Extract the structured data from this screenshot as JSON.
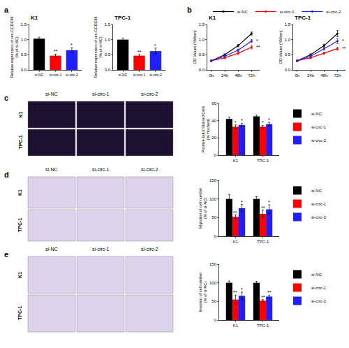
{
  "panel_labels": [
    "a",
    "b",
    "c",
    "d",
    "e"
  ],
  "image_grids": [
    {
      "columns": [
        "si-NC",
        "si-circ-1",
        "si-circ-2"
      ],
      "rows": [
        "K1",
        "TPC-1"
      ]
    },
    {
      "columns": [
        "si-NC",
        "si-circ-1",
        "si-circ-2"
      ],
      "rows": [
        "K1",
        "TPC-1"
      ]
    },
    {
      "columns": [
        "si-NC",
        "si-circ-1",
        "si-circ-2"
      ],
      "rows": [
        "K1",
        "TPC-1"
      ]
    }
  ],
  "chart_data": [
    {
      "type": "bar",
      "title": "K1",
      "ylabel": "Relative expression of circ-CCDC66\n(% of si-NC)",
      "categories": [
        "si-NC",
        "si-circ-1",
        "si-circ-2"
      ],
      "values": [
        1.03,
        0.47,
        0.65
      ],
      "errors": [
        0.05,
        0.05,
        0.08
      ],
      "colors": [
        "#000000",
        "#ff0000",
        "#1f1fff"
      ],
      "ylim": [
        0,
        1.5
      ],
      "yticks": [
        {
          "value": 0,
          "label": "0.0"
        },
        {
          "value": 0.5,
          "label": "0.5"
        },
        {
          "value": 1,
          "label": "1.0"
        },
        {
          "value": 1.5,
          "label": "1.5"
        }
      ],
      "annotations": [
        {
          "category": "si-circ-1",
          "text": "**"
        },
        {
          "category": "si-circ-2",
          "text": "*"
        }
      ]
    },
    {
      "type": "bar",
      "title": "TPC-1",
      "ylabel": "Relative expression of circ-CCDC66\n(% of si-NC)",
      "categories": [
        "si-NC",
        "si-circ-1",
        "si-circ-2"
      ],
      "values": [
        1.0,
        0.47,
        0.62
      ],
      "errors": [
        0.04,
        0.04,
        0.1
      ],
      "colors": [
        "#000000",
        "#ff0000",
        "#1f1fff"
      ],
      "ylim": [
        0,
        1.5
      ],
      "yticks": [
        {
          "value": 0,
          "label": "0.0"
        },
        {
          "value": 0.5,
          "label": "0.5"
        },
        {
          "value": 1,
          "label": "1.0"
        },
        {
          "value": 1.5,
          "label": "1.5"
        }
      ],
      "annotations": [
        {
          "category": "si-circ-1",
          "text": "**"
        },
        {
          "category": "si-circ-2",
          "text": "*"
        }
      ]
    },
    {
      "type": "line",
      "title": "K1",
      "ylabel": "OD Values (450nm)",
      "legend": "top",
      "categories": [
        "0h",
        "24h",
        "48h",
        "72h"
      ],
      "series": [
        {
          "name": "si-NC",
          "color": "#000000",
          "marker": "circle",
          "values": [
            0.3,
            0.5,
            0.8,
            1.2
          ],
          "errors": [
            0.02,
            0.03,
            0.04,
            0.05
          ]
        },
        {
          "name": "si-circ-1",
          "color": "#ff0000",
          "marker": "circle",
          "values": [
            0.3,
            0.4,
            0.55,
            0.75
          ],
          "errors": [
            0.02,
            0.03,
            0.04,
            0.06
          ]
        },
        {
          "name": "si-circ-2",
          "color": "#1f1fff",
          "marker": "circle",
          "values": [
            0.3,
            0.45,
            0.65,
            0.95
          ],
          "errors": [
            0.02,
            0.03,
            0.04,
            0.05
          ]
        }
      ],
      "ylim": [
        0,
        1.5
      ],
      "yticks": [
        {
          "value": 0,
          "label": "0.0"
        },
        {
          "value": 0.5,
          "label": "0.5"
        },
        {
          "value": 1,
          "label": "1.0"
        },
        {
          "value": 1.5,
          "label": "1.5"
        }
      ],
      "annotations": [
        {
          "category": "72h",
          "series": "si-circ-2",
          "text": "*"
        },
        {
          "category": "72h",
          "series": "si-circ-1",
          "text": "**"
        }
      ]
    },
    {
      "type": "line",
      "title": "TPC-1",
      "ylabel": "OD Values (450nm)",
      "legend": "top",
      "categories": [
        "0h",
        "24h",
        "48h",
        "72h"
      ],
      "series": [
        {
          "name": "si-NC",
          "color": "#000000",
          "marker": "circle",
          "values": [
            0.3,
            0.5,
            0.8,
            1.2
          ],
          "errors": [
            0.02,
            0.03,
            0.05,
            0.1
          ]
        },
        {
          "name": "si-circ-1",
          "color": "#ff0000",
          "marker": "circle",
          "values": [
            0.3,
            0.4,
            0.55,
            0.7
          ],
          "errors": [
            0.02,
            0.03,
            0.04,
            0.05
          ]
        },
        {
          "name": "si-circ-2",
          "color": "#1f1fff",
          "marker": "circle",
          "values": [
            0.3,
            0.45,
            0.7,
            0.95
          ],
          "errors": [
            0.02,
            0.03,
            0.05,
            0.08
          ]
        }
      ],
      "ylim": [
        0,
        1.5
      ],
      "yticks": [
        {
          "value": 0,
          "label": "0.0"
        },
        {
          "value": 0.5,
          "label": "0.5"
        },
        {
          "value": 1,
          "label": "1.0"
        },
        {
          "value": 1.5,
          "label": "1.5"
        }
      ],
      "annotations": [
        {
          "category": "72h",
          "series": "si-circ-2",
          "text": "*"
        },
        {
          "category": "72h",
          "series": "si-circ-1",
          "text": "**"
        }
      ]
    },
    {
      "type": "bar",
      "ylabel": "Positive EdU/ Stained Cells\n(% Hochest)",
      "legend": "right",
      "categories": [
        "K1",
        "TPC-1"
      ],
      "series": [
        {
          "name": "si-NC",
          "color": "#000000",
          "values": [
            42,
            45
          ],
          "errors": [
            2,
            1.5
          ]
        },
        {
          "name": "si-circ-1",
          "color": "#ff0000",
          "values": [
            33,
            33
          ],
          "errors": [
            2,
            1.5
          ]
        },
        {
          "name": "si-circ-2",
          "color": "#1f1fff",
          "values": [
            35,
            36
          ],
          "errors": [
            2,
            2
          ]
        }
      ],
      "ylim": [
        0,
        60
      ],
      "yticks": [
        0,
        20,
        40,
        60
      ],
      "annotations": [
        {
          "category": "K1",
          "series": "si-circ-1",
          "text": "*"
        },
        {
          "category": "K1",
          "series": "si-circ-2",
          "text": "*"
        },
        {
          "category": "TPC-1",
          "series": "si-circ-1",
          "text": "*"
        },
        {
          "category": "TPC-1",
          "series": "si-circ-2",
          "text": "*"
        }
      ]
    },
    {
      "type": "bar",
      "ylabel": "Migration of cell number\n(% of si-NC)",
      "legend": "right",
      "categories": [
        "K1",
        "TPC-1"
      ],
      "series": [
        {
          "name": "si-NC",
          "color": "#000000",
          "values": [
            100,
            100
          ],
          "errors": [
            12,
            6
          ]
        },
        {
          "name": "si-circ-1",
          "color": "#ff0000",
          "values": [
            52,
            60
          ],
          "errors": [
            5,
            10
          ]
        },
        {
          "name": "si-circ-2",
          "color": "#1f1fff",
          "values": [
            75,
            72
          ],
          "errors": [
            10,
            12
          ]
        }
      ],
      "ylim": [
        0,
        150
      ],
      "yticks": [
        0,
        50,
        100,
        150
      ],
      "annotations": [
        {
          "category": "K1",
          "series": "si-circ-1",
          "text": "**"
        },
        {
          "category": "K1",
          "series": "si-circ-2",
          "text": "*"
        },
        {
          "category": "TPC-1",
          "series": "si-circ-1",
          "text": "**"
        },
        {
          "category": "TPC-1",
          "series": "si-circ-2",
          "text": "*"
        }
      ]
    },
    {
      "type": "bar",
      "ylabel": "Invasion of cell number\n(% of si-NC)",
      "legend": "right",
      "categories": [
        "K1",
        "TPC-1"
      ],
      "series": [
        {
          "name": "si-NC",
          "color": "#000000",
          "values": [
            100,
            100
          ],
          "errors": [
            5,
            4
          ]
        },
        {
          "name": "si-circ-1",
          "color": "#ff0000",
          "values": [
            55,
            52
          ],
          "errors": [
            12,
            3
          ]
        },
        {
          "name": "si-circ-2",
          "color": "#1f1fff",
          "values": [
            65,
            63
          ],
          "errors": [
            10,
            4
          ]
        }
      ],
      "ylim": [
        0,
        150
      ],
      "yticks": [
        0,
        50,
        100,
        150
      ],
      "annotations": [
        {
          "category": "K1",
          "series": "si-circ-1",
          "text": "**"
        },
        {
          "category": "K1",
          "series": "si-circ-2",
          "text": "*"
        },
        {
          "category": "TPC-1",
          "series": "si-circ-1",
          "text": "**"
        },
        {
          "category": "TPC-1",
          "series": "si-circ-2",
          "text": "**"
        }
      ]
    }
  ]
}
